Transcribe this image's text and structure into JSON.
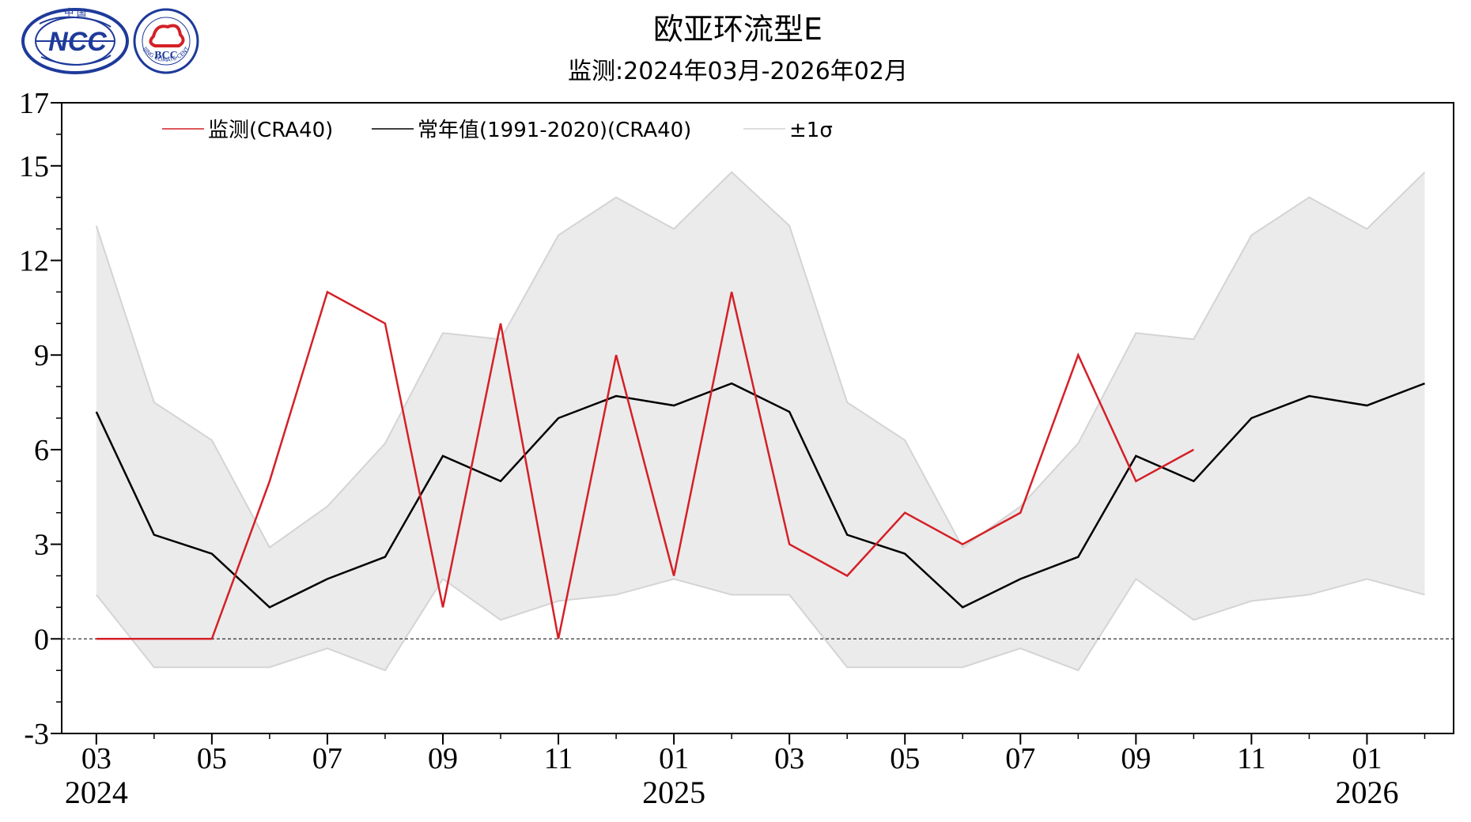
{
  "header": {
    "title": "欧亚环流型E",
    "subtitle": "监测:2024年03月-2026年02月"
  },
  "logos": {
    "ncc": {
      "text": "NCC",
      "top_text": "中 国",
      "color": "#1e3a9a"
    },
    "bcc": {
      "text": "BCC",
      "ring_text": "BEIJING CLIMATE CENTER",
      "color": "#1e3a9a"
    }
  },
  "chart_data": {
    "type": "line",
    "title": "欧亚环流型E",
    "subtitle": "监测:2024年03月-2026年02月",
    "months": [
      "2024-03",
      "2024-04",
      "2024-05",
      "2024-06",
      "2024-07",
      "2024-08",
      "2024-09",
      "2024-10",
      "2024-11",
      "2024-12",
      "2025-01",
      "2025-02",
      "2025-03",
      "2025-04",
      "2025-05",
      "2025-06",
      "2025-07",
      "2025-08",
      "2025-09",
      "2025-10",
      "2025-11",
      "2025-12",
      "2026-01",
      "2026-02"
    ],
    "x_tick_labels": [
      "03",
      "05",
      "07",
      "09",
      "11",
      "01",
      "03",
      "05",
      "07",
      "09",
      "11",
      "01"
    ],
    "x_tick_month_index": [
      0,
      2,
      4,
      6,
      8,
      10,
      12,
      14,
      16,
      18,
      20,
      22
    ],
    "year_labels": [
      {
        "text": "2024",
        "month_index": 0
      },
      {
        "text": "2025",
        "month_index": 10
      },
      {
        "text": "2026",
        "month_index": 22
      }
    ],
    "y_tick_labels": [
      "-3",
      "0",
      "3",
      "6",
      "9",
      "12",
      "15",
      "17"
    ],
    "y_ticks": [
      -3,
      0,
      3,
      6,
      9,
      12,
      15,
      17
    ],
    "ylim": [
      -3,
      17
    ],
    "xlim": [
      -0.6,
      23.5
    ],
    "reference_line": 0,
    "grid": false,
    "legend_position": "top-left",
    "series": [
      {
        "name": "监测(CRA40)",
        "color": "#d42027",
        "values": [
          0,
          0,
          0,
          5,
          11,
          10,
          1,
          10,
          0,
          9,
          2,
          11,
          3,
          2,
          4,
          3,
          4,
          9,
          5,
          6
        ]
      },
      {
        "name": "常年值(1991-2020)(CRA40)",
        "color": "#000000",
        "values": [
          7.2,
          3.3,
          2.7,
          1.0,
          1.9,
          2.6,
          5.8,
          5.0,
          7.0,
          7.7,
          7.4,
          8.1,
          7.2,
          3.3,
          2.7,
          1.0,
          1.9,
          2.6,
          5.8,
          5.0,
          7.0,
          7.7,
          7.4,
          8.1
        ]
      }
    ],
    "band": {
      "name": "±1σ",
      "color": "#ebebeb",
      "edge_color": "#d4d4d4",
      "upper": [
        13.1,
        7.5,
        6.3,
        2.9,
        4.2,
        6.2,
        9.7,
        9.5,
        12.8,
        14.0,
        13.0,
        14.8,
        13.1,
        7.5,
        6.3,
        2.9,
        4.2,
        6.2,
        9.7,
        9.5,
        12.8,
        14.0,
        13.0,
        14.8
      ],
      "lower": [
        1.4,
        -0.9,
        -0.9,
        -0.9,
        -0.3,
        -1.0,
        1.9,
        0.6,
        1.2,
        1.4,
        1.9,
        1.4,
        1.4,
        -0.9,
        -0.9,
        -0.9,
        -0.3,
        -1.0,
        1.9,
        0.6,
        1.2,
        1.4,
        1.9,
        1.4
      ]
    }
  }
}
